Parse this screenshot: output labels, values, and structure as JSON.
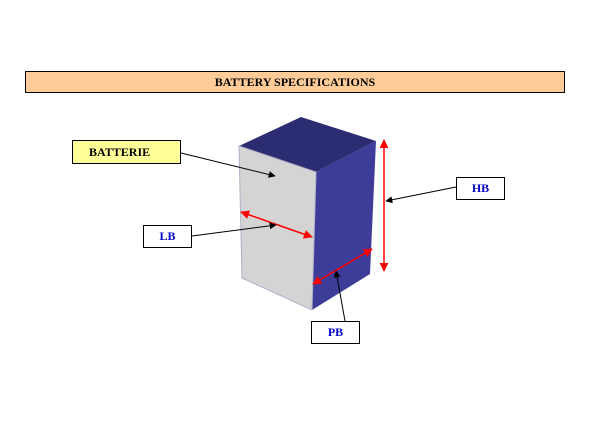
{
  "title": "BATTERY SPECIFICATIONS",
  "labels": {
    "batterie": "BATTERIE",
    "lb": "LB",
    "hb": "HB",
    "pb": "PB"
  },
  "colors": {
    "title_background": "#ffcc99",
    "batterie_label_background": "#ffff99",
    "dimension_label_text": "#0000cc",
    "box_front": "#d4d4d4",
    "box_top": "#2c2c73",
    "box_side": "#3d3d99",
    "dimension_arrows": "#ff0000",
    "pointer_arrows": "#000000"
  }
}
